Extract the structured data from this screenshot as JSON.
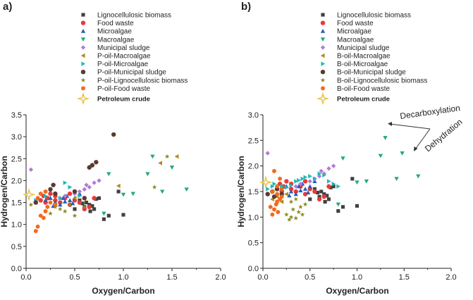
{
  "chart_data": [
    {
      "panel": "a)",
      "type": "scatter",
      "xlabel": "Oxygen/Carbon",
      "ylabel": "Hydrogen/Carbon",
      "xlim": [
        0,
        2.0
      ],
      "ylim": [
        0,
        3.5
      ],
      "xticks": [
        "0.0",
        "0.5",
        "1.0",
        "1.5",
        "2.0"
      ],
      "yticks": [
        "0.0",
        "0.5",
        "1.0",
        "1.5",
        "2.0",
        "2.5",
        "3.0",
        "3.5"
      ],
      "series": [
        {
          "name": "Lignocellulosic biomass",
          "marker": "square",
          "color": "#404040",
          "points": [
            [
              0.5,
              1.35
            ],
            [
              0.55,
              1.55
            ],
            [
              0.6,
              1.4
            ],
            [
              0.62,
              1.5
            ],
            [
              0.65,
              1.45
            ],
            [
              0.68,
              1.42
            ],
            [
              0.7,
              1.35
            ],
            [
              0.72,
              1.58
            ],
            [
              0.75,
              1.6
            ],
            [
              0.8,
              1.12
            ],
            [
              0.85,
              1.2
            ],
            [
              0.95,
              1.75
            ],
            [
              1.0,
              1.22
            ],
            [
              0.58,
              1.48
            ],
            [
              0.66,
              1.3
            ]
          ]
        },
        {
          "name": "Food waste",
          "marker": "circle",
          "color": "#e83a3a",
          "points": [
            [
              0.15,
              1.55
            ],
            [
              0.18,
              1.65
            ],
            [
              0.2,
              1.5
            ],
            [
              0.22,
              1.6
            ],
            [
              0.25,
              1.7
            ],
            [
              0.3,
              1.55
            ],
            [
              0.35,
              1.5
            ],
            [
              0.4,
              1.6
            ],
            [
              0.45,
              1.45
            ],
            [
              0.5,
              1.55
            ],
            [
              0.55,
              1.5
            ],
            [
              0.6,
              1.35
            ],
            [
              0.65,
              1.4
            ],
            [
              0.7,
              1.6
            ],
            [
              0.3,
              1.65
            ],
            [
              0.45,
              1.7
            ]
          ]
        },
        {
          "name": "Microalgae",
          "marker": "triangle-up",
          "color": "#1f5fbf",
          "points": [
            [
              0.2,
              1.55
            ],
            [
              0.25,
              1.6
            ],
            [
              0.3,
              1.5
            ],
            [
              0.35,
              1.45
            ],
            [
              0.38,
              1.6
            ],
            [
              0.4,
              1.52
            ],
            [
              0.42,
              1.65
            ],
            [
              0.45,
              1.55
            ],
            [
              0.5,
              1.6
            ],
            [
              0.55,
              1.7
            ],
            [
              0.28,
              1.42
            ],
            [
              0.48,
              1.48
            ]
          ]
        },
        {
          "name": "Macroalgae",
          "marker": "triangle-down",
          "color": "#23a87e",
          "points": [
            [
              0.8,
              1.25
            ],
            [
              1.0,
              1.68
            ],
            [
              1.1,
              1.7
            ],
            [
              1.25,
              2.15
            ],
            [
              1.3,
              2.55
            ],
            [
              1.4,
              1.75
            ],
            [
              1.5,
              2.3
            ],
            [
              1.65,
              1.8
            ],
            [
              0.85,
              2.15
            ]
          ]
        },
        {
          "name": "Municipal sludge",
          "marker": "diamond",
          "color": "#b27ad6",
          "points": [
            [
              0.05,
              2.25
            ],
            [
              0.4,
              1.65
            ],
            [
              0.5,
              1.7
            ],
            [
              0.55,
              1.75
            ],
            [
              0.6,
              1.8
            ],
            [
              0.62,
              1.9
            ],
            [
              0.65,
              1.85
            ],
            [
              0.7,
              1.95
            ],
            [
              0.75,
              2.0
            ],
            [
              0.35,
              1.6
            ]
          ]
        },
        {
          "name": "P-oil-Macroalgae",
          "marker": "triangle-left",
          "color": "#b58a1a",
          "points": [
            [
              0.3,
              1.45
            ],
            [
              0.5,
              1.6
            ],
            [
              0.6,
              1.58
            ],
            [
              0.95,
              1.88
            ],
            [
              1.38,
              2.4
            ],
            [
              1.55,
              2.55
            ]
          ]
        },
        {
          "name": "P-oil-Microalgae",
          "marker": "triangle-right",
          "color": "#21b8b8",
          "points": [
            [
              0.1,
              1.55
            ],
            [
              0.2,
              1.65
            ],
            [
              0.3,
              1.7
            ],
            [
              0.35,
              1.6
            ],
            [
              0.4,
              1.95
            ],
            [
              0.45,
              1.85
            ],
            [
              0.5,
              1.75
            ],
            [
              0.55,
              1.65
            ]
          ]
        },
        {
          "name": "P-oil-Municipal sludge",
          "marker": "circle",
          "color": "#5a3a30",
          "points": [
            [
              0.1,
              1.5
            ],
            [
              0.25,
              1.8
            ],
            [
              0.28,
              1.9
            ],
            [
              0.3,
              1.7
            ],
            [
              0.5,
              1.75
            ],
            [
              0.6,
              1.6
            ],
            [
              0.65,
              2.3
            ],
            [
              0.68,
              2.35
            ],
            [
              0.72,
              2.42
            ],
            [
              0.9,
              3.05
            ]
          ]
        },
        {
          "name": "P-oil-Lignocellulosic biomass",
          "marker": "star",
          "color": "#8a8a1e",
          "points": [
            [
              0.05,
              1.45
            ],
            [
              0.25,
              1.25
            ],
            [
              0.3,
              1.4
            ],
            [
              0.35,
              1.35
            ],
            [
              0.4,
              1.3
            ],
            [
              0.45,
              1.45
            ],
            [
              0.5,
              1.2
            ],
            [
              0.6,
              1.4
            ],
            [
              1.32,
              1.85
            ],
            [
              1.45,
              2.55
            ]
          ]
        },
        {
          "name": "P-oil-Food waste",
          "marker": "hexagon",
          "color": "#f26a1b",
          "points": [
            [
              0.1,
              0.85
            ],
            [
              0.12,
              0.95
            ],
            [
              0.15,
              1.2
            ],
            [
              0.18,
              1.15
            ],
            [
              0.2,
              1.3
            ],
            [
              0.22,
              1.4
            ],
            [
              0.25,
              1.5
            ],
            [
              0.12,
              1.6
            ],
            [
              0.15,
              1.7
            ],
            [
              0.2,
              1.75
            ],
            [
              0.3,
              1.45
            ]
          ]
        },
        {
          "name": "Petroleum crude",
          "marker": "open-star",
          "color": "#e8c33a",
          "points": [
            [
              0.03,
              1.68
            ]
          ]
        }
      ]
    },
    {
      "panel": "b)",
      "type": "scatter",
      "xlabel": "Oxygen/Carbon",
      "ylabel": "Hydrogen/Carbon",
      "xlim": [
        0,
        2.0
      ],
      "ylim": [
        0,
        3.0
      ],
      "xticks": [
        "0.0",
        "0.5",
        "1.0",
        "1.5",
        "2.0"
      ],
      "yticks": [
        "0.0",
        "0.5",
        "1.0",
        "1.5",
        "2.0",
        "2.5",
        "3.0"
      ],
      "annotations": [
        "Decarboxylation",
        "Dehydration"
      ],
      "series": [
        {
          "name": "Lignocellulosic biomass",
          "marker": "square",
          "color": "#404040",
          "points": [
            [
              0.5,
              1.35
            ],
            [
              0.55,
              1.55
            ],
            [
              0.6,
              1.4
            ],
            [
              0.62,
              1.5
            ],
            [
              0.65,
              1.45
            ],
            [
              0.68,
              1.42
            ],
            [
              0.7,
              1.35
            ],
            [
              0.72,
              1.58
            ],
            [
              0.75,
              1.6
            ],
            [
              0.8,
              1.12
            ],
            [
              0.85,
              1.2
            ],
            [
              0.95,
              1.75
            ],
            [
              1.0,
              1.22
            ],
            [
              0.58,
              1.48
            ],
            [
              0.66,
              1.3
            ]
          ]
        },
        {
          "name": "Food waste",
          "marker": "circle",
          "color": "#e83a3a",
          "points": [
            [
              0.15,
              1.55
            ],
            [
              0.18,
              1.65
            ],
            [
              0.2,
              1.5
            ],
            [
              0.22,
              1.6
            ],
            [
              0.25,
              1.7
            ],
            [
              0.3,
              1.55
            ],
            [
              0.35,
              1.5
            ],
            [
              0.4,
              1.6
            ],
            [
              0.45,
              1.45
            ],
            [
              0.5,
              1.55
            ],
            [
              0.55,
              1.5
            ],
            [
              0.6,
              1.35
            ],
            [
              0.65,
              1.4
            ],
            [
              0.7,
              1.6
            ],
            [
              0.3,
              1.65
            ],
            [
              0.45,
              1.7
            ]
          ]
        },
        {
          "name": "Microalgae",
          "marker": "triangle-up",
          "color": "#1f5fbf",
          "points": [
            [
              0.2,
              1.55
            ],
            [
              0.25,
              1.6
            ],
            [
              0.3,
              1.5
            ],
            [
              0.35,
              1.45
            ],
            [
              0.38,
              1.6
            ],
            [
              0.4,
              1.52
            ],
            [
              0.42,
              1.65
            ],
            [
              0.45,
              1.55
            ],
            [
              0.5,
              1.6
            ],
            [
              0.55,
              1.7
            ],
            [
              0.28,
              1.42
            ],
            [
              0.48,
              1.48
            ]
          ]
        },
        {
          "name": "Macroalgae",
          "marker": "triangle-down",
          "color": "#23a87e",
          "points": [
            [
              0.8,
              1.25
            ],
            [
              1.0,
              1.68
            ],
            [
              1.1,
              1.7
            ],
            [
              1.25,
              2.2
            ],
            [
              1.3,
              2.55
            ],
            [
              1.42,
              1.75
            ],
            [
              1.48,
              2.25
            ],
            [
              1.65,
              1.8
            ],
            [
              0.85,
              2.15
            ]
          ]
        },
        {
          "name": "Municipal sludge",
          "marker": "diamond",
          "color": "#b27ad6",
          "points": [
            [
              0.05,
              2.25
            ],
            [
              0.4,
              1.65
            ],
            [
              0.5,
              1.7
            ],
            [
              0.55,
              1.75
            ],
            [
              0.6,
              1.8
            ],
            [
              0.62,
              1.9
            ],
            [
              0.65,
              1.85
            ],
            [
              0.7,
              1.95
            ],
            [
              0.75,
              2.0
            ],
            [
              0.35,
              1.6
            ]
          ]
        },
        {
          "name": "B-oil-Macroalgae",
          "marker": "triangle-left",
          "color": "#b58a1a",
          "points": [
            [
              0.1,
              1.35
            ],
            [
              0.15,
              1.4
            ],
            [
              0.2,
              1.3
            ],
            [
              0.25,
              1.45
            ]
          ]
        },
        {
          "name": "B-oil-Microalgae",
          "marker": "triangle-right",
          "color": "#21b8b8",
          "points": [
            [
              0.05,
              1.55
            ],
            [
              0.1,
              1.6
            ],
            [
              0.12,
              1.65
            ],
            [
              0.15,
              1.55
            ],
            [
              0.2,
              1.6
            ],
            [
              0.25,
              1.58
            ],
            [
              0.3,
              1.62
            ],
            [
              0.35,
              1.7
            ],
            [
              0.38,
              1.72
            ],
            [
              0.42,
              1.75
            ],
            [
              0.45,
              1.78
            ],
            [
              0.5,
              1.8
            ],
            [
              0.55,
              1.75
            ],
            [
              0.6,
              1.85
            ],
            [
              0.65,
              1.82
            ],
            [
              0.7,
              1.7
            ],
            [
              0.75,
              1.65
            ],
            [
              0.8,
              1.6
            ]
          ]
        },
        {
          "name": "B-oil-Municipal sludge",
          "marker": "circle",
          "color": "#5a3a30",
          "points": [
            [
              0.05,
              1.45
            ],
            [
              0.1,
              1.5
            ],
            [
              0.15,
              1.55
            ],
            [
              0.2,
              1.45
            ],
            [
              0.12,
              1.4
            ]
          ]
        },
        {
          "name": "B-oil-Lignocellulosic biomass",
          "marker": "star",
          "color": "#8a8a1e",
          "points": [
            [
              0.25,
              1.05
            ],
            [
              0.28,
              0.95
            ],
            [
              0.3,
              1.0
            ],
            [
              0.32,
              1.15
            ],
            [
              0.35,
              0.98
            ],
            [
              0.38,
              1.1
            ],
            [
              0.4,
              1.2
            ],
            [
              0.42,
              1.05
            ],
            [
              0.45,
              1.25
            ],
            [
              0.3,
              1.3
            ],
            [
              0.35,
              1.35
            ]
          ]
        },
        {
          "name": "B-oil-Food waste",
          "marker": "hexagon",
          "color": "#f26a1b",
          "points": [
            [
              0.08,
              1.2
            ],
            [
              0.1,
              1.05
            ],
            [
              0.12,
              1.15
            ],
            [
              0.14,
              1.25
            ],
            [
              0.15,
              1.3
            ],
            [
              0.16,
              1.1
            ],
            [
              0.18,
              1.35
            ],
            [
              0.2,
              1.4
            ],
            [
              0.1,
              1.5
            ],
            [
              0.15,
              1.6
            ],
            [
              0.18,
              1.75
            ],
            [
              0.12,
              1.9
            ],
            [
              0.2,
              1.55
            ],
            [
              0.15,
              1.45
            ]
          ]
        },
        {
          "name": "Petroleum crude",
          "marker": "open-star",
          "color": "#e8c33a",
          "points": [
            [
              0.03,
              1.68
            ]
          ]
        }
      ]
    }
  ]
}
